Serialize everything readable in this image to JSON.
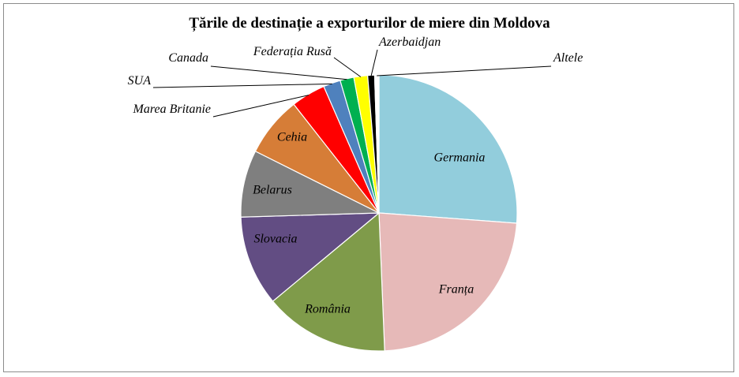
{
  "chart_data": {
    "type": "pie",
    "title": "Țările de destinație a exporturilor  de miere din Moldova",
    "legend": "none",
    "slices": [
      {
        "name": "Germania",
        "value": 26.0,
        "color": "#92CDDC",
        "label": "inside"
      },
      {
        "name": "Franța",
        "value": 23.0,
        "color": "#E6B9B8",
        "label": "inside"
      },
      {
        "name": "România",
        "value": 14.5,
        "color": "#7F9B4A",
        "label": "inside"
      },
      {
        "name": "Slovacia",
        "value": 10.5,
        "color": "#624D83",
        "label": "inside"
      },
      {
        "name": "Belarus",
        "value": 7.8,
        "color": "#7F7F7F",
        "label": "inside"
      },
      {
        "name": "Cehia",
        "value": 7.0,
        "color": "#D67D37",
        "label": "inside"
      },
      {
        "name": "Marea Britanie",
        "value": 4.0,
        "color": "#FF0000",
        "label": "outside"
      },
      {
        "name": "SUA",
        "value": 2.0,
        "color": "#4F81BD",
        "label": "outside"
      },
      {
        "name": "Canada",
        "value": 1.6,
        "color": "#00B050",
        "label": "outside"
      },
      {
        "name": "Federația Rusă",
        "value": 1.6,
        "color": "#FFFF00",
        "label": "outside"
      },
      {
        "name": "Azerbaidjan",
        "value": 0.8,
        "color": "#000000",
        "label": "outside"
      },
      {
        "name": "Altele",
        "value": 0.5,
        "color": "#FFFFFF",
        "label": "outside"
      }
    ]
  }
}
